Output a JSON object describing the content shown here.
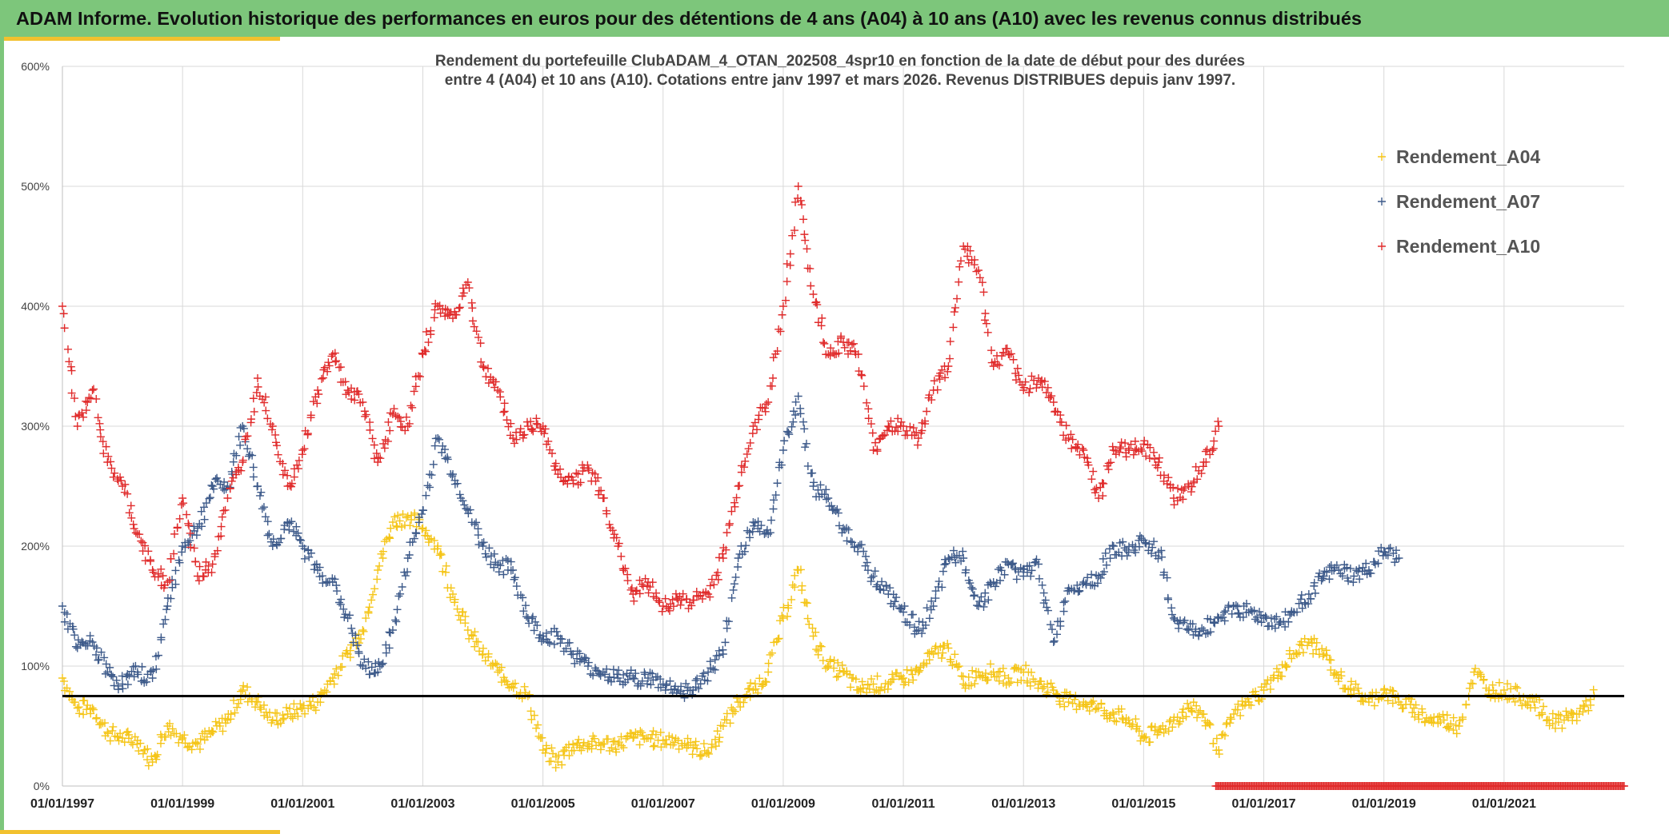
{
  "banner": {
    "title": "ADAM Informe. Evolution historique des performances en euros pour des détentions de 4 ans (A04) à 10 ans (A10) avec les revenus connus distribués",
    "background": "#7dc67b",
    "accent": "#f2c12e"
  },
  "chart_data": {
    "type": "scatter",
    "title_line1": "Rendement du portefeuille ClubADAM_4_OTAN_202508_4spr10  en fonction de la date de début pour des durées",
    "title_line2": "entre 4 (A04) et 10 ans (A10). Cotations entre janv 1997 et mars 2026. Revenus DISTRIBUES depuis janv 1997.",
    "xlabel": "",
    "ylabel": "",
    "xlim": [
      1997.0,
      2023.0
    ],
    "ylim": [
      0,
      600
    ],
    "x_tick_labels": [
      "01/01/1997",
      "01/01/1999",
      "01/01/2001",
      "01/01/2003",
      "01/01/2005",
      "01/01/2007",
      "01/01/2009",
      "01/01/2011",
      "01/01/2013",
      "01/01/2015",
      "01/01/2017",
      "01/01/2019",
      "01/01/2021"
    ],
    "x_ticks": [
      1997,
      1999,
      2001,
      2003,
      2005,
      2007,
      2009,
      2011,
      2013,
      2015,
      2017,
      2019,
      2021
    ],
    "y_ticks": [
      0,
      100,
      200,
      300,
      400,
      500,
      600
    ],
    "y_tick_labels": [
      "0%",
      "100%",
      "200%",
      "300%",
      "400%",
      "500%",
      "600%"
    ],
    "grid": true,
    "legend_position": "top-right",
    "reference_line": {
      "y": 75,
      "color": "#000000"
    },
    "series": [
      {
        "name": "Rendement_A04",
        "color": "#f5c518",
        "x": [
          1997.0,
          1997.25,
          1997.5,
          1997.75,
          1998.0,
          1998.25,
          1998.5,
          1998.75,
          1999.0,
          1999.25,
          1999.5,
          1999.75,
          2000.0,
          2000.25,
          2000.5,
          2000.75,
          2001.0,
          2001.25,
          2001.5,
          2001.75,
          2002.0,
          2002.25,
          2002.5,
          2002.75,
          2003.0,
          2003.25,
          2003.5,
          2003.75,
          2004.0,
          2004.25,
          2004.5,
          2004.75,
          2005.0,
          2005.25,
          2005.5,
          2005.75,
          2006.0,
          2006.25,
          2006.5,
          2006.75,
          2007.0,
          2007.25,
          2007.5,
          2007.75,
          2008.0,
          2008.25,
          2008.5,
          2008.75,
          2009.0,
          2009.25,
          2009.5,
          2009.75,
          2010.0,
          2010.25,
          2010.5,
          2010.75,
          2011.0,
          2011.25,
          2011.5,
          2011.75,
          2012.0,
          2012.25,
          2012.5,
          2012.75,
          2013.0,
          2013.25,
          2013.5,
          2013.75,
          2014.0,
          2014.25,
          2014.5,
          2014.75,
          2015.0,
          2015.25,
          2015.5,
          2015.75,
          2016.0,
          2016.25,
          2016.5,
          2016.75,
          2017.0,
          2017.25,
          2017.5,
          2017.75,
          2018.0,
          2018.25,
          2018.5,
          2018.75,
          2019.0,
          2019.25,
          2019.5,
          2019.75,
          2020.0,
          2020.25,
          2020.5,
          2020.75,
          2021.0,
          2021.25,
          2021.5,
          2021.75,
          2022.0,
          2022.25,
          2022.5
        ],
        "values": [
          90,
          65,
          65,
          45,
          40,
          38,
          20,
          50,
          40,
          35,
          45,
          55,
          80,
          70,
          55,
          60,
          65,
          70,
          90,
          110,
          130,
          180,
          220,
          225,
          215,
          200,
          160,
          130,
          110,
          95,
          85,
          75,
          30,
          20,
          35,
          35,
          35,
          35,
          40,
          40,
          38,
          38,
          32,
          28,
          50,
          70,
          80,
          95,
          140,
          180,
          125,
          100,
          95,
          80,
          85,
          85,
          90,
          95,
          110,
          115,
          85,
          95,
          95,
          90,
          95,
          85,
          80,
          70,
          70,
          65,
          60,
          55,
          40,
          45,
          55,
          65,
          60,
          30,
          60,
          70,
          80,
          95,
          110,
          120,
          110,
          90,
          80,
          70,
          80,
          70,
          65,
          55,
          55,
          50,
          95,
          80,
          80,
          75,
          70,
          55,
          55,
          60,
          75
        ]
      },
      {
        "name": "Rendement_A07",
        "color": "#3d5a8a",
        "x": [
          1997.0,
          1997.25,
          1997.5,
          1997.75,
          1998.0,
          1998.25,
          1998.5,
          1998.75,
          1999.0,
          1999.25,
          1999.5,
          1999.75,
          2000.0,
          2000.25,
          2000.5,
          2000.75,
          2001.0,
          2001.25,
          2001.5,
          2001.75,
          2002.0,
          2002.25,
          2002.5,
          2002.75,
          2003.0,
          2003.25,
          2003.5,
          2003.75,
          2004.0,
          2004.25,
          2004.5,
          2004.75,
          2005.0,
          2005.25,
          2005.5,
          2005.75,
          2006.0,
          2006.25,
          2006.5,
          2006.75,
          2007.0,
          2007.25,
          2007.5,
          2007.75,
          2008.0,
          2008.25,
          2008.5,
          2008.75,
          2009.0,
          2009.25,
          2009.5,
          2009.75,
          2010.0,
          2010.25,
          2010.5,
          2010.75,
          2011.0,
          2011.25,
          2011.5,
          2011.75,
          2012.0,
          2012.25,
          2012.5,
          2012.75,
          2013.0,
          2013.25,
          2013.5,
          2013.75,
          2014.0,
          2014.25,
          2014.5,
          2014.75,
          2015.0,
          2015.25,
          2015.5,
          2015.75,
          2016.0,
          2016.25,
          2016.5,
          2016.75,
          2017.0,
          2017.25,
          2017.5,
          2017.75,
          2018.0,
          2018.25,
          2018.5,
          2018.75,
          2019.0,
          2019.25
        ],
        "values": [
          150,
          115,
          120,
          95,
          85,
          95,
          90,
          150,
          200,
          215,
          250,
          250,
          300,
          250,
          200,
          220,
          200,
          180,
          170,
          140,
          100,
          95,
          130,
          190,
          230,
          290,
          260,
          230,
          200,
          185,
          180,
          140,
          125,
          125,
          110,
          100,
          95,
          90,
          90,
          90,
          85,
          80,
          80,
          95,
          110,
          190,
          220,
          210,
          280,
          325,
          250,
          240,
          215,
          200,
          175,
          160,
          145,
          130,
          150,
          190,
          190,
          150,
          170,
          185,
          175,
          185,
          120,
          165,
          170,
          175,
          200,
          195,
          205,
          195,
          140,
          130,
          130,
          140,
          150,
          145,
          140,
          135,
          145,
          160,
          175,
          180,
          175,
          180,
          195,
          190
        ]
      },
      {
        "name": "Rendement_A10",
        "color": "#e02b2b",
        "x": [
          1997.0,
          1997.25,
          1997.5,
          1997.75,
          1998.0,
          1998.25,
          1998.5,
          1998.75,
          1999.0,
          1999.25,
          1999.5,
          1999.75,
          2000.0,
          2000.25,
          2000.5,
          2000.75,
          2001.0,
          2001.25,
          2001.5,
          2001.75,
          2002.0,
          2002.25,
          2002.5,
          2002.75,
          2003.0,
          2003.25,
          2003.5,
          2003.75,
          2004.0,
          2004.25,
          2004.5,
          2004.75,
          2005.0,
          2005.25,
          2005.5,
          2005.75,
          2006.0,
          2006.25,
          2006.5,
          2006.75,
          2007.0,
          2007.25,
          2007.5,
          2007.75,
          2008.0,
          2008.25,
          2008.5,
          2008.75,
          2009.0,
          2009.25,
          2009.5,
          2009.75,
          2010.0,
          2010.25,
          2010.5,
          2010.75,
          2011.0,
          2011.25,
          2011.5,
          2011.75,
          2012.0,
          2012.25,
          2012.5,
          2012.75,
          2013.0,
          2013.25,
          2013.5,
          2013.75,
          2014.0,
          2014.25,
          2014.5,
          2014.75,
          2015.0,
          2015.25,
          2015.5,
          2015.75,
          2016.0,
          2016.25
        ],
        "values": [
          400,
          300,
          330,
          270,
          250,
          210,
          180,
          170,
          240,
          175,
          185,
          240,
          270,
          340,
          300,
          250,
          280,
          330,
          360,
          330,
          320,
          270,
          310,
          300,
          360,
          400,
          390,
          420,
          350,
          330,
          290,
          300,
          300,
          260,
          255,
          265,
          240,
          200,
          160,
          170,
          150,
          155,
          155,
          160,
          190,
          250,
          300,
          320,
          400,
          500,
          410,
          360,
          370,
          360,
          280,
          300,
          300,
          290,
          330,
          350,
          450,
          430,
          350,
          360,
          330,
          340,
          320,
          290,
          280,
          240,
          280,
          280,
          285,
          270,
          240,
          250,
          270,
          300
        ]
      }
    ],
    "baseline_marks": {
      "color": "#e02b2b",
      "value": 0,
      "x_start": 2016.2,
      "x_end": 2023.0
    }
  }
}
